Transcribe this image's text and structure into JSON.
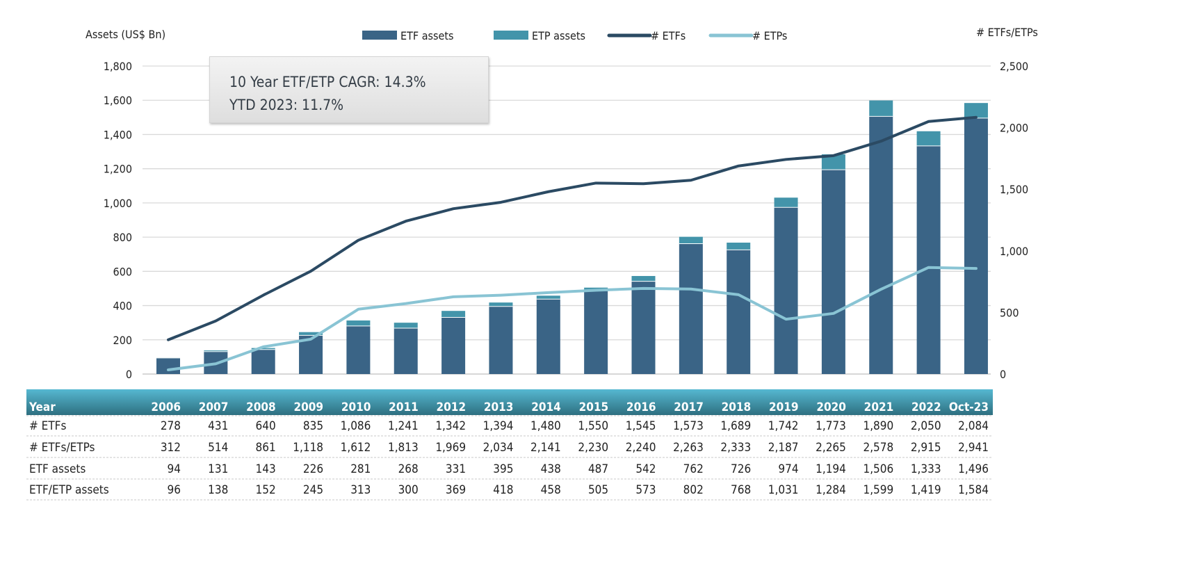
{
  "chart_data": {
    "type": "bar",
    "categories": [
      "2006",
      "2007",
      "2008",
      "2009",
      "2010",
      "2011",
      "2012",
      "2013",
      "2014",
      "2015",
      "2016",
      "2017",
      "2018",
      "2019",
      "2020",
      "2021",
      "2022",
      "Oct-23"
    ],
    "left_axis": {
      "label": "Assets (US$ Bn)",
      "range": [
        0,
        1800
      ],
      "ticks": [
        0,
        200,
        400,
        600,
        800,
        1000,
        1200,
        1400,
        1600,
        1800
      ],
      "tick_labels": [
        "0",
        "200",
        "400",
        "600",
        "800",
        "1,000",
        "1,200",
        "1,400",
        "1,600",
        "1,800"
      ]
    },
    "right_axis": {
      "label": "# ETFs/ETPs",
      "range": [
        0,
        2500
      ],
      "ticks": [
        0,
        500,
        1000,
        1500,
        2000,
        2500
      ],
      "tick_labels": [
        "0",
        "500",
        "1,000",
        "1,500",
        "2,000",
        "2,500"
      ]
    },
    "grid": true,
    "legend_placement": "top",
    "series": [
      {
        "name": "ETF assets",
        "kind": "stacked-bar",
        "axis": "left",
        "color": "#3a6486",
        "values": [
          94,
          131,
          143,
          226,
          281,
          268,
          331,
          395,
          438,
          487,
          542,
          762,
          726,
          974,
          1194,
          1506,
          1333,
          1496
        ]
      },
      {
        "name": "ETP assets",
        "kind": "stacked-bar",
        "axis": "left",
        "color": "#4394aa",
        "values": [
          2,
          7,
          9,
          19,
          32,
          32,
          38,
          23,
          20,
          18,
          31,
          40,
          42,
          57,
          90,
          93,
          86,
          88
        ]
      },
      {
        "name": "# ETFs",
        "kind": "line",
        "axis": "right",
        "color": "#2b4a63",
        "values": [
          278,
          431,
          640,
          835,
          1086,
          1241,
          1342,
          1394,
          1480,
          1550,
          1545,
          1573,
          1689,
          1742,
          1773,
          1890,
          2050,
          2084
        ]
      },
      {
        "name": "# ETPs",
        "kind": "line",
        "axis": "right",
        "color": "#89c4d4",
        "values": [
          34,
          83,
          221,
          283,
          526,
          572,
          627,
          640,
          661,
          680,
          695,
          690,
          644,
          445,
          492,
          688,
          865,
          857
        ]
      }
    ],
    "annotation": {
      "line1": "10 Year ETF/ETP CAGR: 14.3%",
      "line2": "YTD 2023: 11.7%"
    },
    "table": {
      "header": "Year",
      "columns": [
        "2006",
        "2007",
        "2008",
        "2009",
        "2010",
        "2011",
        "2012",
        "2013",
        "2014",
        "2015",
        "2016",
        "2017",
        "2018",
        "2019",
        "2020",
        "2021",
        "2022",
        "Oct-23"
      ],
      "rows": [
        {
          "label": "# ETFs",
          "values": [
            "278",
            "431",
            "640",
            "835",
            "1,086",
            "1,241",
            "1,342",
            "1,394",
            "1,480",
            "1,550",
            "1,545",
            "1,573",
            "1,689",
            "1,742",
            "1,773",
            "1,890",
            "2,050",
            "2,084"
          ]
        },
        {
          "label": "# ETFs/ETPs",
          "values": [
            "312",
            "514",
            "861",
            "1,118",
            "1,612",
            "1,813",
            "1,969",
            "2,034",
            "2,141",
            "2,230",
            "2,240",
            "2,263",
            "2,333",
            "2,187",
            "2,265",
            "2,578",
            "2,915",
            "2,941"
          ]
        },
        {
          "label": "ETF assets",
          "values": [
            "94",
            "131",
            "143",
            "226",
            "281",
            "268",
            "331",
            "395",
            "438",
            "487",
            "542",
            "762",
            "726",
            "974",
            "1,194",
            "1,506",
            "1,333",
            "1,496"
          ]
        },
        {
          "label": "ETF/ETP assets",
          "values": [
            "96",
            "138",
            "152",
            "245",
            "313",
            "300",
            "369",
            "418",
            "458",
            "505",
            "573",
            "802",
            "768",
            "1,031",
            "1,284",
            "1,599",
            "1,419",
            "1,584"
          ]
        }
      ]
    }
  }
}
